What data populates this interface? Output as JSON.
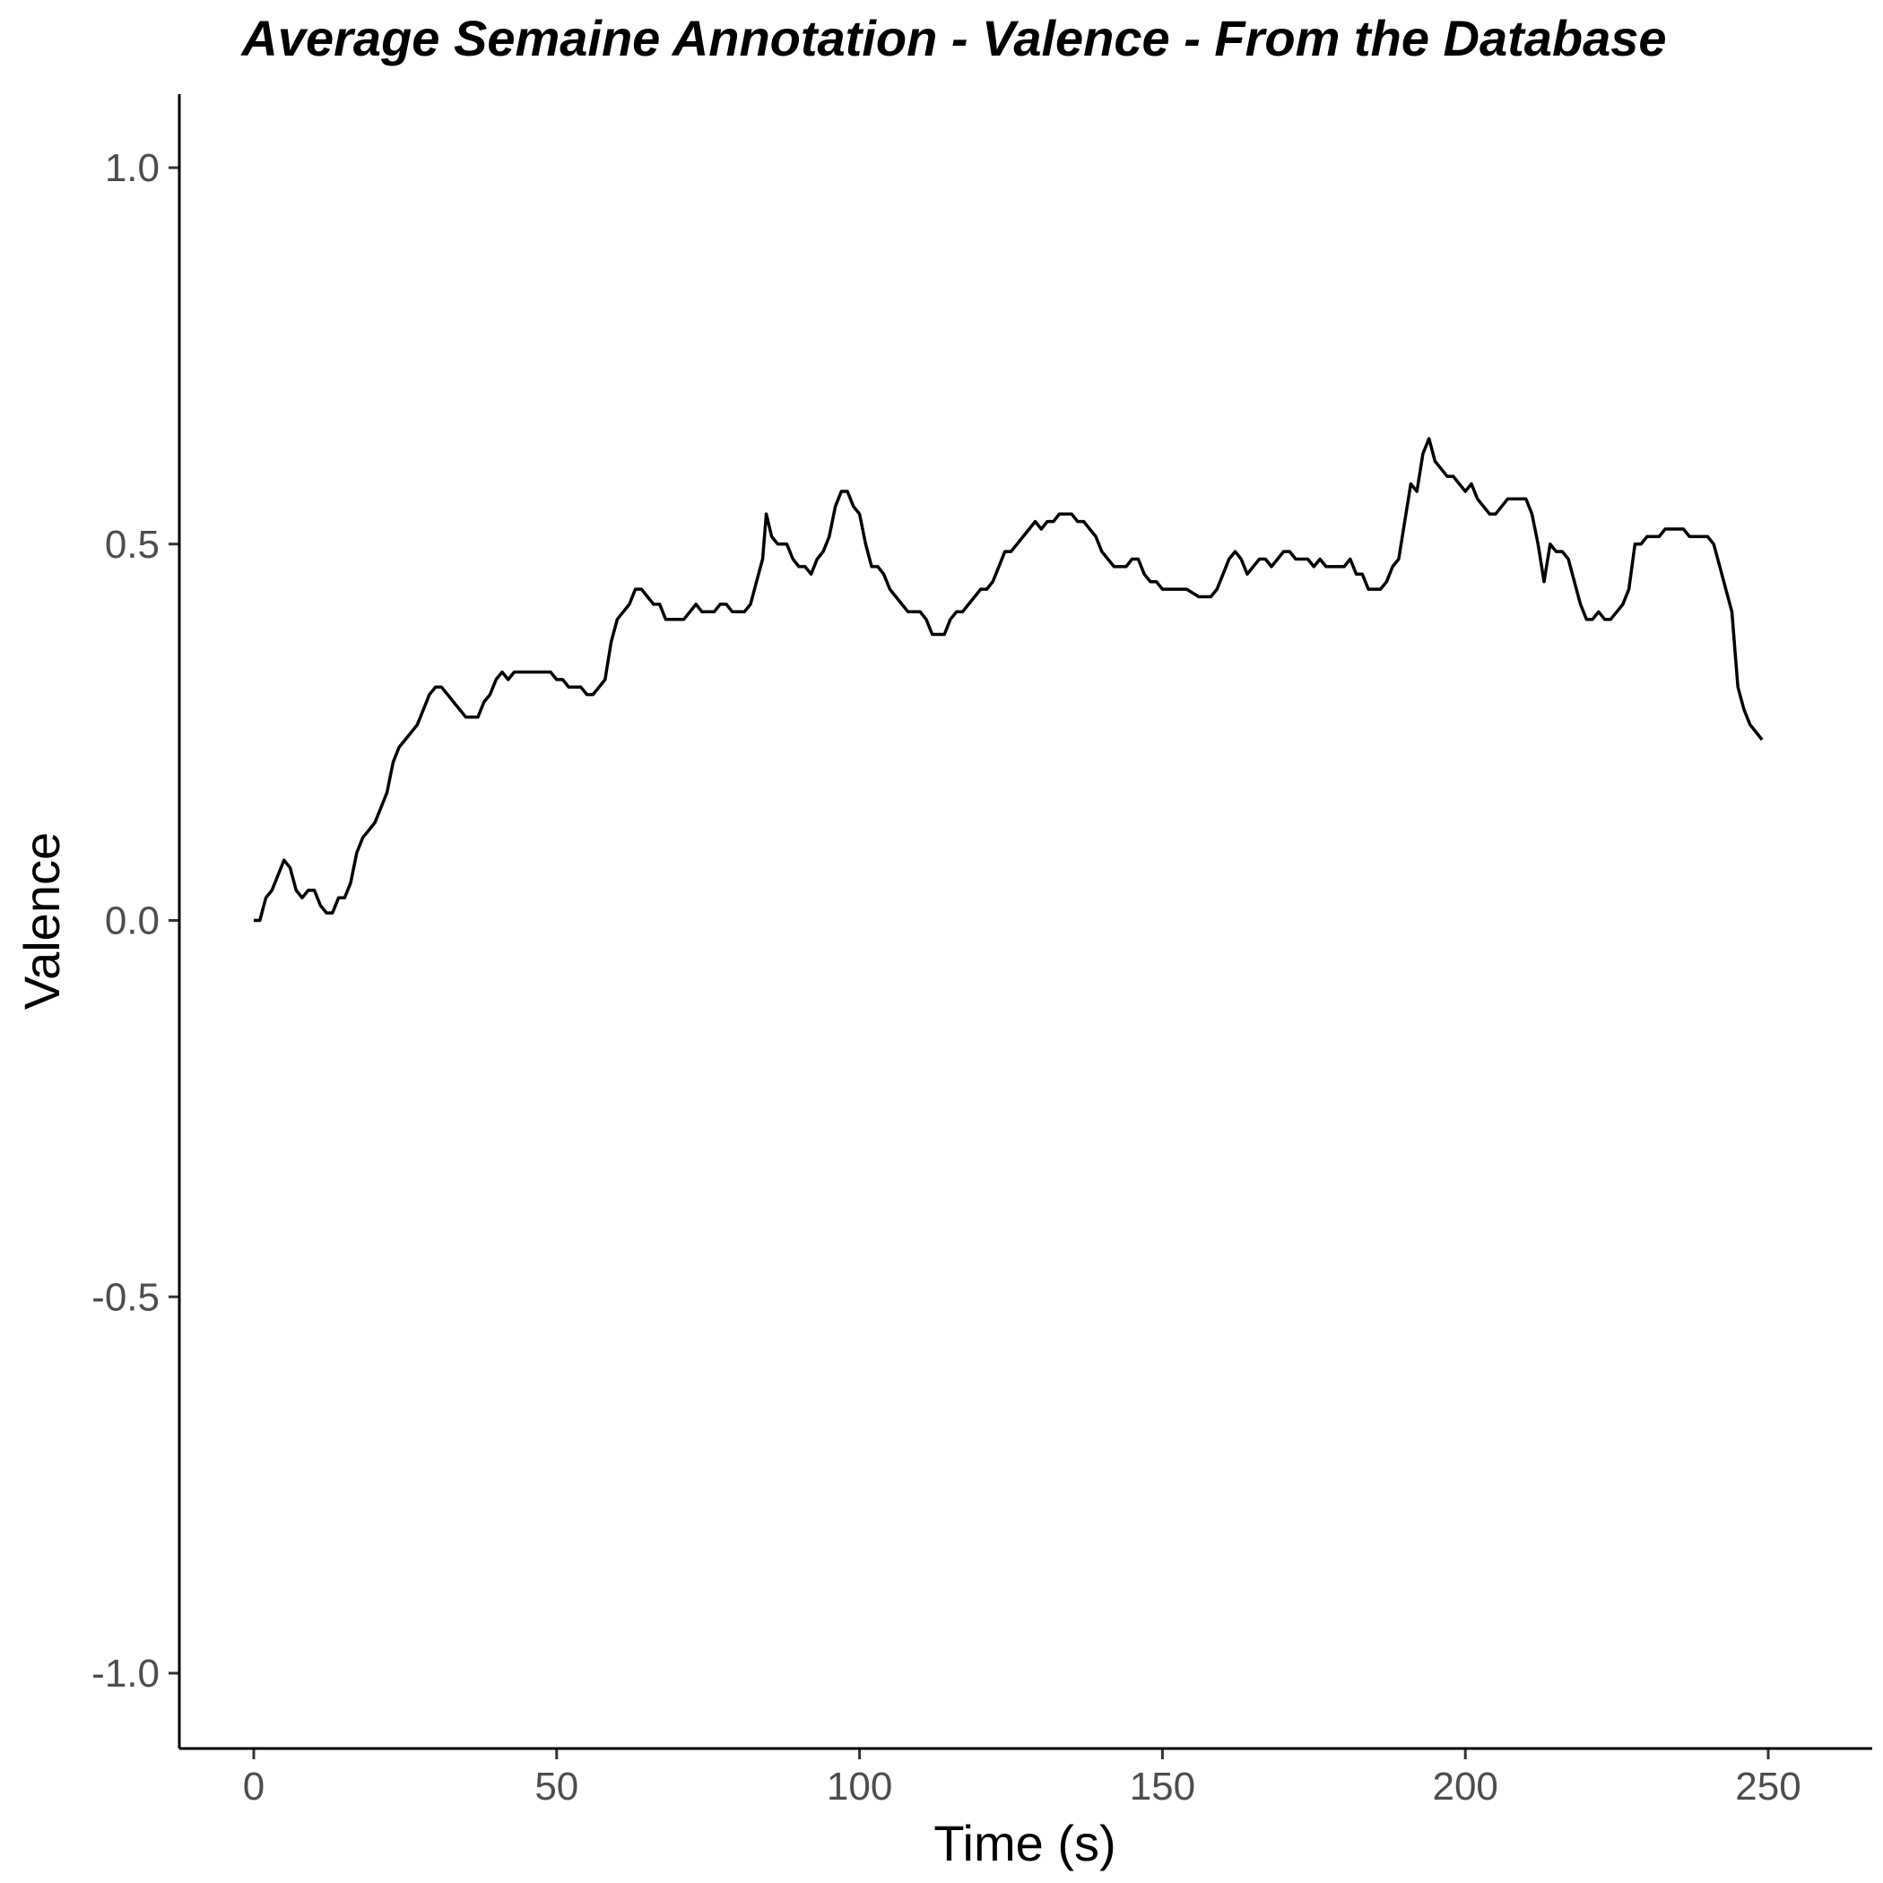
{
  "chart_data": {
    "type": "line",
    "title": "Average Semaine Annotation - Valence - From the Database",
    "xlabel": "Time (s)",
    "ylabel": "Valence",
    "xlim": [
      0,
      250
    ],
    "ylim": [
      -1.0,
      1.0
    ],
    "x_ticks": [
      "0",
      "50",
      "100",
      "150",
      "200",
      "250"
    ],
    "y_ticks": [
      "-1.0",
      "-0.5",
      "0.0",
      "0.5",
      "1.0"
    ],
    "grid": false,
    "line_color": "#000000",
    "series": [
      {
        "points": [
          [
            0,
            0.0
          ],
          [
            1,
            0.0
          ],
          [
            2,
            0.03
          ],
          [
            3,
            0.04
          ],
          [
            4,
            0.06
          ],
          [
            5,
            0.08
          ],
          [
            6,
            0.07
          ],
          [
            7,
            0.04
          ],
          [
            8,
            0.03
          ],
          [
            9,
            0.04
          ],
          [
            10,
            0.04
          ],
          [
            11,
            0.02
          ],
          [
            12,
            0.01
          ],
          [
            13,
            0.01
          ],
          [
            14,
            0.03
          ],
          [
            15,
            0.03
          ],
          [
            16,
            0.05
          ],
          [
            17,
            0.09
          ],
          [
            18,
            0.11
          ],
          [
            19,
            0.12
          ],
          [
            20,
            0.13
          ],
          [
            21,
            0.15
          ],
          [
            22,
            0.17
          ],
          [
            23,
            0.21
          ],
          [
            24,
            0.23
          ],
          [
            25,
            0.24
          ],
          [
            26,
            0.25
          ],
          [
            27,
            0.26
          ],
          [
            28,
            0.28
          ],
          [
            29,
            0.3
          ],
          [
            30,
            0.31
          ],
          [
            31,
            0.31
          ],
          [
            32,
            0.3
          ],
          [
            33,
            0.29
          ],
          [
            34,
            0.28
          ],
          [
            35,
            0.27
          ],
          [
            36,
            0.27
          ],
          [
            37,
            0.27
          ],
          [
            38,
            0.29
          ],
          [
            39,
            0.3
          ],
          [
            40,
            0.32
          ],
          [
            41,
            0.33
          ],
          [
            42,
            0.32
          ],
          [
            43,
            0.33
          ],
          [
            44,
            0.33
          ],
          [
            45,
            0.33
          ],
          [
            46,
            0.33
          ],
          [
            47,
            0.33
          ],
          [
            48,
            0.33
          ],
          [
            49,
            0.33
          ],
          [
            50,
            0.32
          ],
          [
            51,
            0.32
          ],
          [
            52,
            0.31
          ],
          [
            53,
            0.31
          ],
          [
            54,
            0.31
          ],
          [
            55,
            0.3
          ],
          [
            56,
            0.3
          ],
          [
            57,
            0.31
          ],
          [
            58,
            0.32
          ],
          [
            59,
            0.37
          ],
          [
            60,
            0.4
          ],
          [
            61,
            0.41
          ],
          [
            62,
            0.42
          ],
          [
            63,
            0.44
          ],
          [
            64,
            0.44
          ],
          [
            65,
            0.43
          ],
          [
            66,
            0.42
          ],
          [
            67,
            0.42
          ],
          [
            68,
            0.4
          ],
          [
            69,
            0.4
          ],
          [
            70,
            0.4
          ],
          [
            71,
            0.4
          ],
          [
            72,
            0.41
          ],
          [
            73,
            0.42
          ],
          [
            74,
            0.41
          ],
          [
            75,
            0.41
          ],
          [
            76,
            0.41
          ],
          [
            77,
            0.42
          ],
          [
            78,
            0.42
          ],
          [
            79,
            0.41
          ],
          [
            80,
            0.41
          ],
          [
            81,
            0.41
          ],
          [
            82,
            0.42
          ],
          [
            83,
            0.45
          ],
          [
            84,
            0.48
          ],
          [
            84.6,
            0.54
          ],
          [
            85.5,
            0.51
          ],
          [
            86.5,
            0.5
          ],
          [
            88,
            0.5
          ],
          [
            89,
            0.48
          ],
          [
            90,
            0.47
          ],
          [
            91,
            0.47
          ],
          [
            92,
            0.46
          ],
          [
            93,
            0.48
          ],
          [
            94,
            0.49
          ],
          [
            95,
            0.51
          ],
          [
            96,
            0.55
          ],
          [
            97,
            0.57
          ],
          [
            98,
            0.57
          ],
          [
            99,
            0.55
          ],
          [
            100,
            0.54
          ],
          [
            101,
            0.5
          ],
          [
            102,
            0.47
          ],
          [
            103,
            0.47
          ],
          [
            104,
            0.46
          ],
          [
            105,
            0.44
          ],
          [
            106,
            0.43
          ],
          [
            107,
            0.42
          ],
          [
            108,
            0.41
          ],
          [
            109,
            0.41
          ],
          [
            110,
            0.41
          ],
          [
            111,
            0.4
          ],
          [
            112,
            0.38
          ],
          [
            113,
            0.38
          ],
          [
            114,
            0.38
          ],
          [
            115,
            0.4
          ],
          [
            116,
            0.41
          ],
          [
            117,
            0.41
          ],
          [
            118,
            0.42
          ],
          [
            119,
            0.43
          ],
          [
            120,
            0.44
          ],
          [
            121,
            0.44
          ],
          [
            122,
            0.45
          ],
          [
            123,
            0.47
          ],
          [
            124,
            0.49
          ],
          [
            125,
            0.49
          ],
          [
            126,
            0.5
          ],
          [
            127,
            0.51
          ],
          [
            128,
            0.52
          ],
          [
            129,
            0.53
          ],
          [
            130,
            0.52
          ],
          [
            131,
            0.53
          ],
          [
            132,
            0.53
          ],
          [
            133,
            0.54
          ],
          [
            134,
            0.54
          ],
          [
            135,
            0.54
          ],
          [
            136,
            0.53
          ],
          [
            137,
            0.53
          ],
          [
            138,
            0.52
          ],
          [
            139,
            0.51
          ],
          [
            140,
            0.49
          ],
          [
            141,
            0.48
          ],
          [
            142,
            0.47
          ],
          [
            143,
            0.47
          ],
          [
            144,
            0.47
          ],
          [
            145,
            0.48
          ],
          [
            146,
            0.48
          ],
          [
            147,
            0.46
          ],
          [
            148,
            0.45
          ],
          [
            149,
            0.45
          ],
          [
            150,
            0.44
          ],
          [
            152,
            0.44
          ],
          [
            154,
            0.44
          ],
          [
            156,
            0.43
          ],
          [
            158,
            0.43
          ],
          [
            159,
            0.44
          ],
          [
            160,
            0.46
          ],
          [
            161,
            0.48
          ],
          [
            162,
            0.49
          ],
          [
            163,
            0.48
          ],
          [
            164,
            0.46
          ],
          [
            165,
            0.47
          ],
          [
            166,
            0.48
          ],
          [
            167,
            0.48
          ],
          [
            168,
            0.47
          ],
          [
            169,
            0.48
          ],
          [
            170,
            0.49
          ],
          [
            171,
            0.49
          ],
          [
            172,
            0.48
          ],
          [
            173,
            0.48
          ],
          [
            174,
            0.48
          ],
          [
            175,
            0.47
          ],
          [
            176,
            0.48
          ],
          [
            177,
            0.47
          ],
          [
            178,
            0.47
          ],
          [
            179,
            0.47
          ],
          [
            180,
            0.47
          ],
          [
            181,
            0.48
          ],
          [
            182,
            0.46
          ],
          [
            183,
            0.46
          ],
          [
            184,
            0.44
          ],
          [
            185,
            0.44
          ],
          [
            186,
            0.44
          ],
          [
            187,
            0.45
          ],
          [
            188,
            0.47
          ],
          [
            189,
            0.48
          ],
          [
            190,
            0.53
          ],
          [
            191,
            0.58
          ],
          [
            192,
            0.57
          ],
          [
            193,
            0.62
          ],
          [
            194,
            0.64
          ],
          [
            195,
            0.61
          ],
          [
            196,
            0.6
          ],
          [
            197,
            0.59
          ],
          [
            198,
            0.59
          ],
          [
            199,
            0.58
          ],
          [
            200,
            0.57
          ],
          [
            201,
            0.58
          ],
          [
            202,
            0.56
          ],
          [
            203,
            0.55
          ],
          [
            204,
            0.54
          ],
          [
            205,
            0.54
          ],
          [
            206,
            0.55
          ],
          [
            207,
            0.56
          ],
          [
            208,
            0.56
          ],
          [
            209,
            0.56
          ],
          [
            210,
            0.56
          ],
          [
            211,
            0.54
          ],
          [
            212,
            0.5
          ],
          [
            213,
            0.45
          ],
          [
            214,
            0.5
          ],
          [
            215,
            0.49
          ],
          [
            216,
            0.49
          ],
          [
            217,
            0.48
          ],
          [
            218,
            0.45
          ],
          [
            219,
            0.42
          ],
          [
            220,
            0.4
          ],
          [
            221,
            0.4
          ],
          [
            222,
            0.41
          ],
          [
            223,
            0.4
          ],
          [
            224,
            0.4
          ],
          [
            225,
            0.41
          ],
          [
            226,
            0.42
          ],
          [
            227,
            0.44
          ],
          [
            228,
            0.5
          ],
          [
            229,
            0.5
          ],
          [
            230,
            0.51
          ],
          [
            231,
            0.51
          ],
          [
            232,
            0.51
          ],
          [
            233,
            0.52
          ],
          [
            234,
            0.52
          ],
          [
            235,
            0.52
          ],
          [
            236,
            0.52
          ],
          [
            237,
            0.51
          ],
          [
            238,
            0.51
          ],
          [
            239,
            0.51
          ],
          [
            240,
            0.51
          ],
          [
            241,
            0.5
          ],
          [
            242,
            0.47
          ],
          [
            243,
            0.44
          ],
          [
            244,
            0.41
          ],
          [
            244.5,
            0.36
          ],
          [
            245,
            0.31
          ],
          [
            246,
            0.28
          ],
          [
            247,
            0.26
          ],
          [
            248,
            0.25
          ],
          [
            249,
            0.24
          ]
        ]
      }
    ]
  }
}
